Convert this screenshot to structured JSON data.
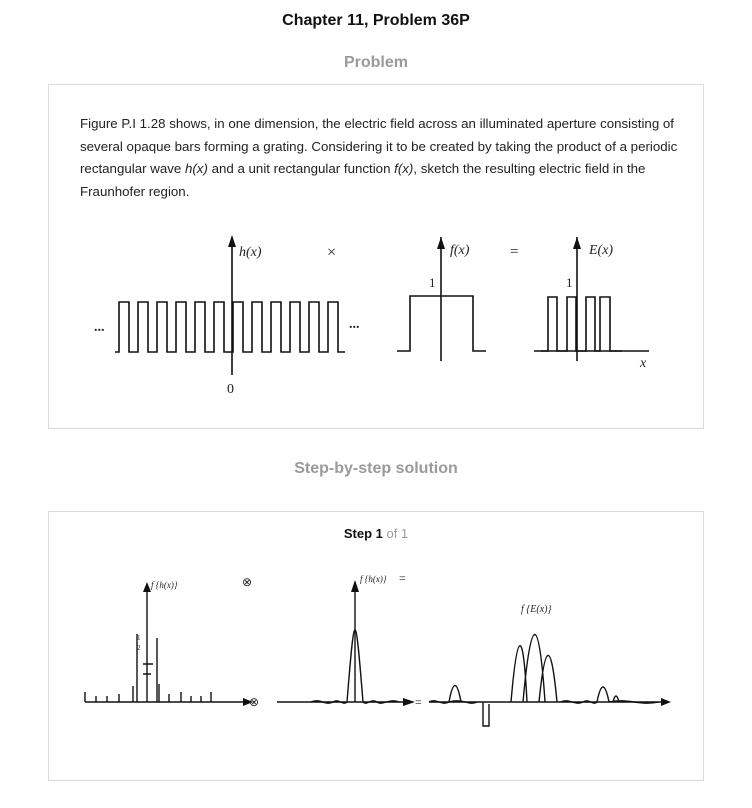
{
  "header": {
    "title": "Chapter 11, Problem 36P"
  },
  "problem": {
    "heading": "Problem",
    "text_parts": [
      "Figure P.I 1.28 shows, in one dimension, the electric field across an illuminated aperture consisting of several opaque bars forming a grating. Considering it to be created by taking the product of a periodic rectangular wave ",
      "h(x)",
      " and a unit rectangular function ",
      "f(x)",
      ", sketch the resulting electric field in the Fraunhofer region."
    ],
    "figure": {
      "label_h": "h(x)",
      "op_times": "×",
      "label_f": "f(x)",
      "op_equals": "=",
      "label_E": "E(x)",
      "one_f": "1",
      "one_E": "1",
      "zero": "0",
      "ellipsis": "...",
      "axis_x": "x"
    }
  },
  "solution": {
    "heading": "Step-by-step solution",
    "step_word": "Step 1",
    "step_total": " of 1",
    "figure": {
      "label_left": "f {h(x)}",
      "half_num": "1",
      "half_den": "2",
      "label_mid": "f {h(x)}",
      "op_equals_top": "=",
      "op_equals_axis": "=",
      "label_right": "f {E(x)}",
      "conv_symbol": "⊗"
    }
  }
}
